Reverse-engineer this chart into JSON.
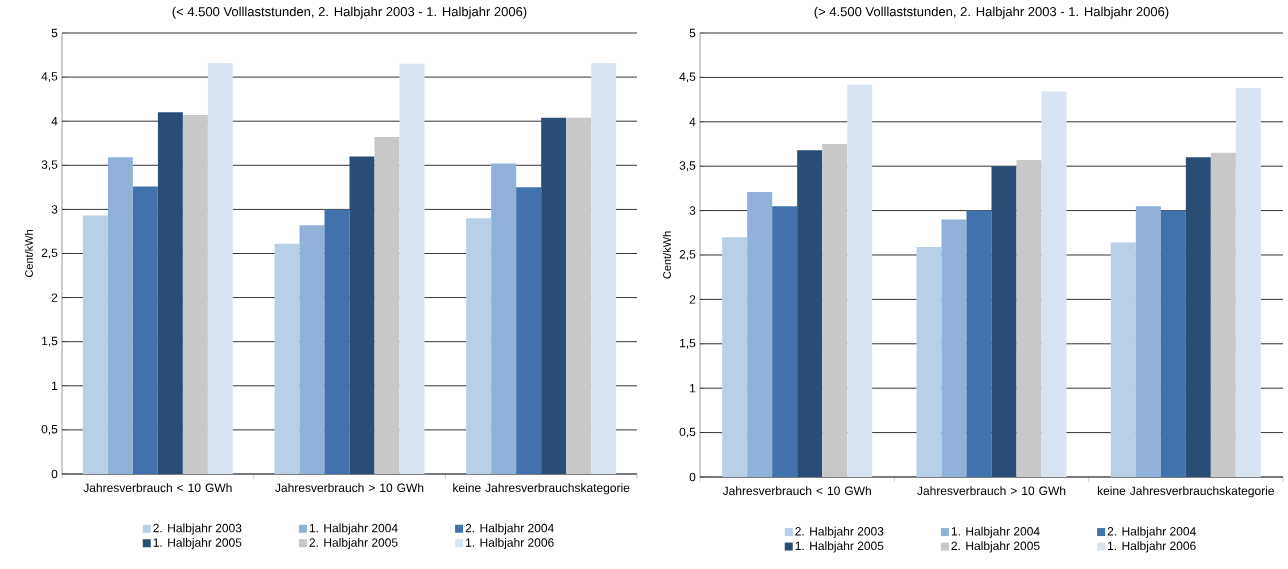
{
  "chart_data": [
    {
      "type": "bar",
      "title": "(< 4.500 Volllaststunden, 2. Halbjahr 2003 - 1. Halbjahr 2006)",
      "ylabel": "Cent/kWh",
      "categories": [
        "Jahresverbrauch < 10 GWh",
        "Jahresverbrauch > 10 GWh",
        "keine Jahresverbrauchskategorie"
      ],
      "series": [
        {
          "name": "2. Halbjahr 2003",
          "color": "#b9cfe6",
          "values": [
            2.93,
            2.61,
            2.9
          ]
        },
        {
          "name": "1. Halbjahr 2004",
          "color": "#91b2d8",
          "values": [
            3.59,
            2.82,
            3.52
          ]
        },
        {
          "name": "2. Halbjahr 2004",
          "color": "#4172ae",
          "values": [
            3.26,
            3.0,
            3.25
          ]
        },
        {
          "name": "1. Halbjahr 2005",
          "color": "#2a4d76",
          "values": [
            4.1,
            3.6,
            4.04
          ]
        },
        {
          "name": "2. Halbjahr 2005",
          "color": "#c8c8c8",
          "values": [
            4.07,
            3.82,
            4.04
          ]
        },
        {
          "name": "1. Halbjahr 2006",
          "color": "#d9e4f2",
          "values": [
            4.66,
            4.65,
            4.66
          ]
        }
      ],
      "ylim": [
        0,
        5
      ],
      "yticks": [
        0,
        {
          "value": 0.5,
          "label": "0,5"
        },
        1,
        {
          "value": 1.5,
          "label": "1,5"
        },
        2,
        {
          "value": 2.5,
          "label": "2,5"
        },
        3,
        {
          "value": 3.5,
          "label": "3,5"
        },
        4,
        {
          "value": 4.5,
          "label": "4,5"
        },
        5
      ],
      "grid": "y",
      "legend": "bottom"
    },
    {
      "type": "bar",
      "title": "(> 4.500 Volllaststunden, 2. Halbjahr 2003 - 1. Halbjahr 2006)",
      "ylabel": "Cent/kWh",
      "categories": [
        "Jahresverbrauch < 10 GWh",
        "Jahresverbrauch > 10 GWh",
        "keine Jahresverbrauchskategorie"
      ],
      "series": [
        {
          "name": "2. Halbjahr 2003",
          "color": "#b9cfe6",
          "values": [
            2.7,
            2.59,
            2.64
          ]
        },
        {
          "name": "1. Halbjahr 2004",
          "color": "#91b2d8",
          "values": [
            3.21,
            2.9,
            3.05
          ]
        },
        {
          "name": "2. Halbjahr 2004",
          "color": "#4172ae",
          "values": [
            3.05,
            3.0,
            3.0
          ]
        },
        {
          "name": "1. Halbjahr 2005",
          "color": "#2a4d76",
          "values": [
            3.68,
            3.5,
            3.6
          ]
        },
        {
          "name": "2. Halbjahr 2005",
          "color": "#c8c8c8",
          "values": [
            3.75,
            3.57,
            3.65
          ]
        },
        {
          "name": "1. Halbjahr 2006",
          "color": "#d9e4f2",
          "values": [
            4.42,
            4.34,
            4.38
          ]
        }
      ],
      "ylim": [
        0,
        5
      ],
      "yticks": [
        0,
        {
          "value": 0.5,
          "label": "0,5"
        },
        1,
        {
          "value": 1.5,
          "label": "1,5"
        },
        2,
        {
          "value": 2.5,
          "label": "2,5"
        },
        3,
        {
          "value": 3.5,
          "label": "3,5"
        },
        4,
        {
          "value": 4.5,
          "label": "4,5"
        },
        5
      ],
      "grid": "y",
      "legend": "bottom"
    }
  ]
}
